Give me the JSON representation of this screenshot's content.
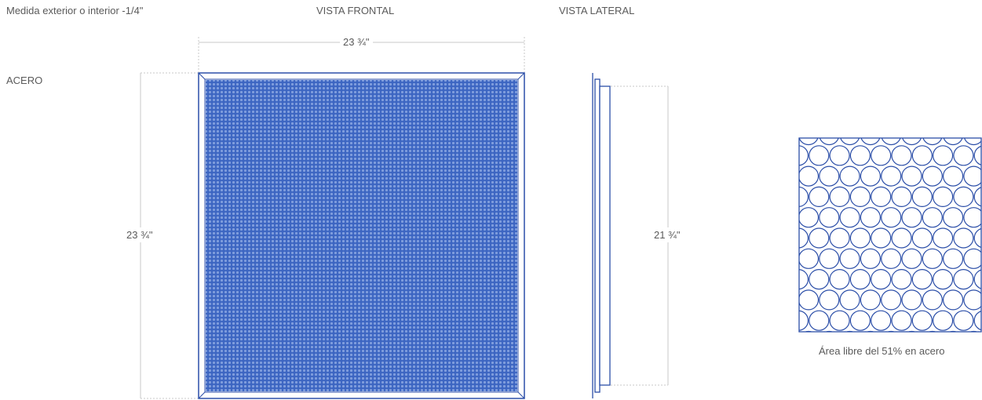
{
  "header": {
    "note": "Medida exterior o interior -1/4\"",
    "front_title": "VISTA FRONTAL",
    "side_title": "VISTA LATERAL"
  },
  "material_label": "ACERO",
  "dimensions": {
    "front_width": "23 ¾\"",
    "front_height": "23 ¾\"",
    "side_height": "21 ¾\""
  },
  "detail_caption": "Área libre del 51% en acero",
  "colors": {
    "line": "#2b4ea8",
    "fill": "#4a72c8",
    "dim_line": "#c8c8c8"
  }
}
